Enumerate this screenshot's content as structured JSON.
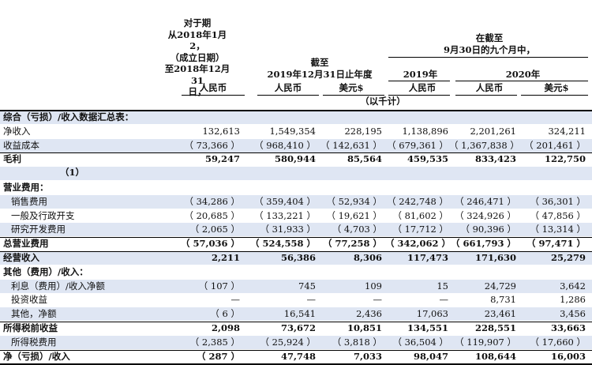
{
  "header": {
    "period1": [
      "对于期",
      "从2018年1月2，",
      "（成立日期）",
      "至2018年12月31",
      "日，"
    ],
    "period2": [
      "截至",
      "2019年12月31日止年度"
    ],
    "period3": [
      "在截至",
      "9月30日的九个月中，"
    ],
    "year_2019": "2019年",
    "year_2020": "2020年",
    "currency": [
      "人民币",
      "人民币",
      "美元$",
      "人民币",
      "人民币",
      "美元$"
    ],
    "unit": "（以千计）"
  },
  "note": "（1）",
  "rows": [
    {
      "label": "综合（亏损）/收入数据汇总表：",
      "shade": true,
      "bold": true,
      "indent": 0,
      "values": [
        "",
        "",
        "",
        "",
        "",
        ""
      ]
    },
    {
      "label": "净收入",
      "shade": false,
      "bold": false,
      "indent": 0,
      "values": [
        "132,613",
        "1,549,354",
        "228,195",
        "1,138,896",
        "2,201,261",
        "324,211"
      ]
    },
    {
      "label": "收益成本",
      "shade": true,
      "bold": false,
      "indent": 0,
      "values": [
        "（ 73,366 ）",
        "（ 968,410 ）",
        "（ 142,631 ）",
        "（ 679,361 ）",
        "（ 1,367,838 ）",
        "（ 201,461 ）"
      ]
    },
    {
      "label": "毛利",
      "shade": false,
      "bold": true,
      "indent": 0,
      "values": [
        "59,247",
        "580,944",
        "85,564",
        "459,535",
        "833,423",
        "122,750"
      ]
    },
    {
      "label": "",
      "shade": true,
      "bold": false,
      "indent": 0,
      "values": [
        "",
        "",
        "",
        "",
        "",
        ""
      ]
    },
    {
      "label": "营业费用：",
      "shade": false,
      "bold": true,
      "indent": 0,
      "values": [
        "",
        "",
        "",
        "",
        "",
        ""
      ]
    },
    {
      "label": "销售费用",
      "shade": true,
      "bold": false,
      "indent": 1,
      "values": [
        "（ 34,286 ）",
        "（ 359,404 ）",
        "（ 52,934 ）",
        "（ 242,748 ）",
        "（ 246,471 ）",
        "（ 36,301 ）"
      ]
    },
    {
      "label": "一般及行政开支",
      "shade": false,
      "bold": false,
      "indent": 1,
      "values": [
        "（ 20,685 ）",
        "（ 133,221 ）",
        "（ 19,621 ）",
        "（ 81,602 ）",
        "（ 324,926 ）",
        "（ 47,856 ）"
      ]
    },
    {
      "label": "研究开发费用",
      "shade": true,
      "bold": false,
      "indent": 1,
      "values": [
        "（ 2,065 ）",
        "（ 31,933 ）",
        "（ 4,703 ）",
        "（ 17,712 ）",
        "（ 90,396 ）",
        "（ 13,314 ）"
      ]
    },
    {
      "label": "总营业费用",
      "shade": false,
      "bold": true,
      "indent": 0,
      "values": [
        "（ 57,036 ）",
        "（ 524,558 ）",
        "（ 77,258 ）",
        "（ 342,062 ）",
        "（ 661,793 ）",
        "（ 97,471 ）"
      ]
    },
    {
      "label": "经营收入",
      "shade": true,
      "bold": true,
      "indent": 0,
      "values": [
        "2,211",
        "56,386",
        "8,306",
        "117,473",
        "171,630",
        "25,279"
      ]
    },
    {
      "label": "其他（费用）/收入：",
      "shade": false,
      "bold": true,
      "indent": 0,
      "values": [
        "",
        "",
        "",
        "",
        "",
        ""
      ]
    },
    {
      "label": "利息（费用）/收入净额",
      "shade": true,
      "bold": false,
      "indent": 1,
      "values": [
        "（ 107 ）",
        "745",
        "109",
        "15",
        "24,729",
        "3,642"
      ]
    },
    {
      "label": "投资收益",
      "shade": false,
      "bold": false,
      "indent": 1,
      "values": [
        "—",
        "—",
        "—",
        "—",
        "8,731",
        "1,286"
      ]
    },
    {
      "label": "其他，净额",
      "shade": true,
      "bold": false,
      "indent": 1,
      "values": [
        "（ 6 ）",
        "16,541",
        "2,436",
        "17,063",
        "23,461",
        "3,456"
      ]
    },
    {
      "label": "所得税前收益",
      "shade": false,
      "bold": true,
      "indent": 0,
      "values": [
        "2,098",
        "73,672",
        "10,851",
        "134,551",
        "228,551",
        "33,663"
      ]
    },
    {
      "label": "所得税费用",
      "shade": true,
      "bold": false,
      "indent": 1,
      "values": [
        "（ 2,385 ）",
        "（ 25,924 ）",
        "（ 3,818 ）",
        "（ 36,504 ）",
        "（ 119,907 ）",
        "（ 17,660 ）"
      ]
    },
    {
      "label": "净（亏损）/收入",
      "shade": false,
      "bold": true,
      "indent": 0,
      "values": [
        "（ 287 ）",
        "47,748",
        "7,033",
        "98,047",
        "108,644",
        "16,003"
      ]
    }
  ]
}
